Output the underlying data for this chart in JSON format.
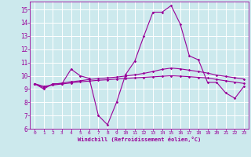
{
  "xlabel": "Windchill (Refroidissement éolien,°C)",
  "bg_color": "#cce9ed",
  "line_color": "#990099",
  "xlim": [
    -0.5,
    23.5
  ],
  "ylim": [
    6,
    15.6
  ],
  "yticks": [
    6,
    7,
    8,
    9,
    10,
    11,
    12,
    13,
    14,
    15
  ],
  "xticks": [
    0,
    1,
    2,
    3,
    4,
    5,
    6,
    7,
    8,
    9,
    10,
    11,
    12,
    13,
    14,
    15,
    16,
    17,
    18,
    19,
    20,
    21,
    22,
    23
  ],
  "series": [
    [
      9.4,
      9.0,
      9.4,
      9.4,
      10.5,
      10.0,
      9.8,
      7.0,
      6.3,
      8.0,
      10.1,
      11.1,
      13.0,
      14.8,
      14.8,
      15.3,
      13.9,
      11.5,
      11.2,
      9.5,
      9.5,
      8.7,
      8.3,
      9.2
    ],
    [
      9.4,
      9.1,
      9.35,
      9.45,
      9.55,
      9.62,
      9.72,
      9.78,
      9.84,
      9.9,
      9.98,
      10.07,
      10.18,
      10.32,
      10.48,
      10.58,
      10.52,
      10.42,
      10.32,
      10.2,
      10.05,
      9.95,
      9.85,
      9.75
    ],
    [
      9.4,
      9.2,
      9.3,
      9.38,
      9.46,
      9.54,
      9.6,
      9.66,
      9.7,
      9.75,
      9.8,
      9.84,
      9.88,
      9.92,
      9.96,
      10.0,
      9.97,
      9.93,
      9.88,
      9.83,
      9.72,
      9.62,
      9.52,
      9.42
    ]
  ]
}
